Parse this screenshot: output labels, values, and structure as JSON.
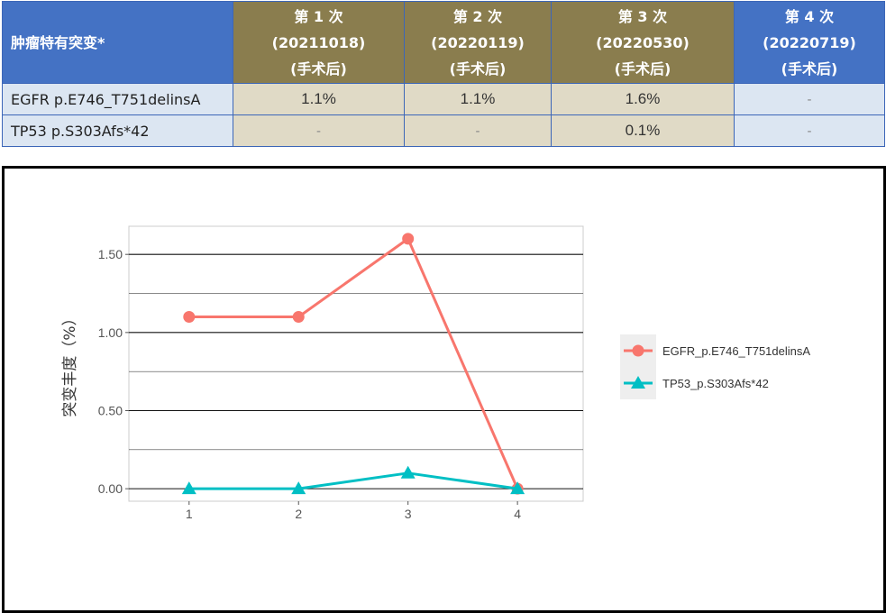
{
  "table": {
    "header_label": "肿瘤特有突变*",
    "columns": [
      {
        "line1": "第 1 次",
        "line2": "(20211018)",
        "line3": "(手术后)"
      },
      {
        "line1": "第 2 次",
        "line2": "(20220119)",
        "line3": "(手术后)"
      },
      {
        "line1": "第 3 次",
        "line2": "(20220530)",
        "line3": "(手术后)"
      },
      {
        "line1": "第 4 次",
        "line2": "(20220719)",
        "line3": "(手术后)"
      }
    ],
    "rows": [
      {
        "label": "EGFR p.E746_T751delinsA",
        "values": [
          "1.1%",
          "1.1%",
          "1.6%",
          "-"
        ]
      },
      {
        "label": "TP53 p.S303Afs*42",
        "values": [
          "-",
          "-",
          "0.1%",
          "-"
        ]
      }
    ]
  },
  "chart_data": {
    "type": "line",
    "title": "",
    "xlabel": "",
    "ylabel": "突变丰度（%）",
    "x": [
      1,
      2,
      3,
      4
    ],
    "x_ticks": [
      "1",
      "2",
      "3",
      "4"
    ],
    "y_ticks": [
      "0.00",
      "0.50",
      "1.00",
      "1.50"
    ],
    "y_tick_values": [
      0,
      0.5,
      1.0,
      1.5
    ],
    "xlim": [
      0.45,
      4.6
    ],
    "ylim": [
      -0.08,
      1.68
    ],
    "grid": true,
    "legend_position": "right",
    "series": [
      {
        "name": "EGFR_p.E746_T751delinsA",
        "values": [
          1.1,
          1.1,
          1.6,
          0.0
        ],
        "color": "#f8766d",
        "marker": "circle"
      },
      {
        "name": "TP53_p.S303Afs*42",
        "values": [
          0.0,
          0.0,
          0.1,
          0.0
        ],
        "color": "#00bfc4",
        "marker": "triangle"
      }
    ]
  }
}
